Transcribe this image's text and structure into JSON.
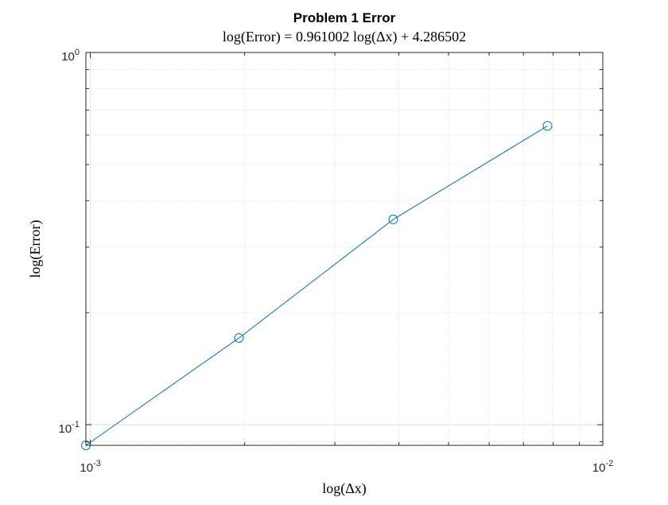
{
  "chart_data": {
    "type": "line",
    "title": "Problem 1 Error",
    "subtitle": "log(Error) = 0.961002 log(Δx) + 4.286502",
    "xlabel": "log(Δx)",
    "ylabel": "log(Error)",
    "xscale": "log",
    "yscale": "log",
    "xlim": [
      0.00098,
      0.01
    ],
    "ylim": [
      0.088,
      1
    ],
    "x_ticks": [
      {
        "value": 0.001,
        "base": "10",
        "exp": "-3"
      },
      {
        "value": 0.01,
        "base": "10",
        "exp": "-2"
      }
    ],
    "y_ticks": [
      {
        "value": 0.1,
        "base": "10",
        "exp": "-1"
      },
      {
        "value": 1,
        "base": "10",
        "exp": "0"
      }
    ],
    "grid": true,
    "minor_grid": true,
    "box": true,
    "series": [
      {
        "color": "#0072BD",
        "marker": "circle",
        "x": [
          0.00098,
          0.00195,
          0.0039,
          0.0078
        ],
        "y": [
          0.088,
          0.171,
          0.356,
          0.635
        ]
      }
    ]
  }
}
